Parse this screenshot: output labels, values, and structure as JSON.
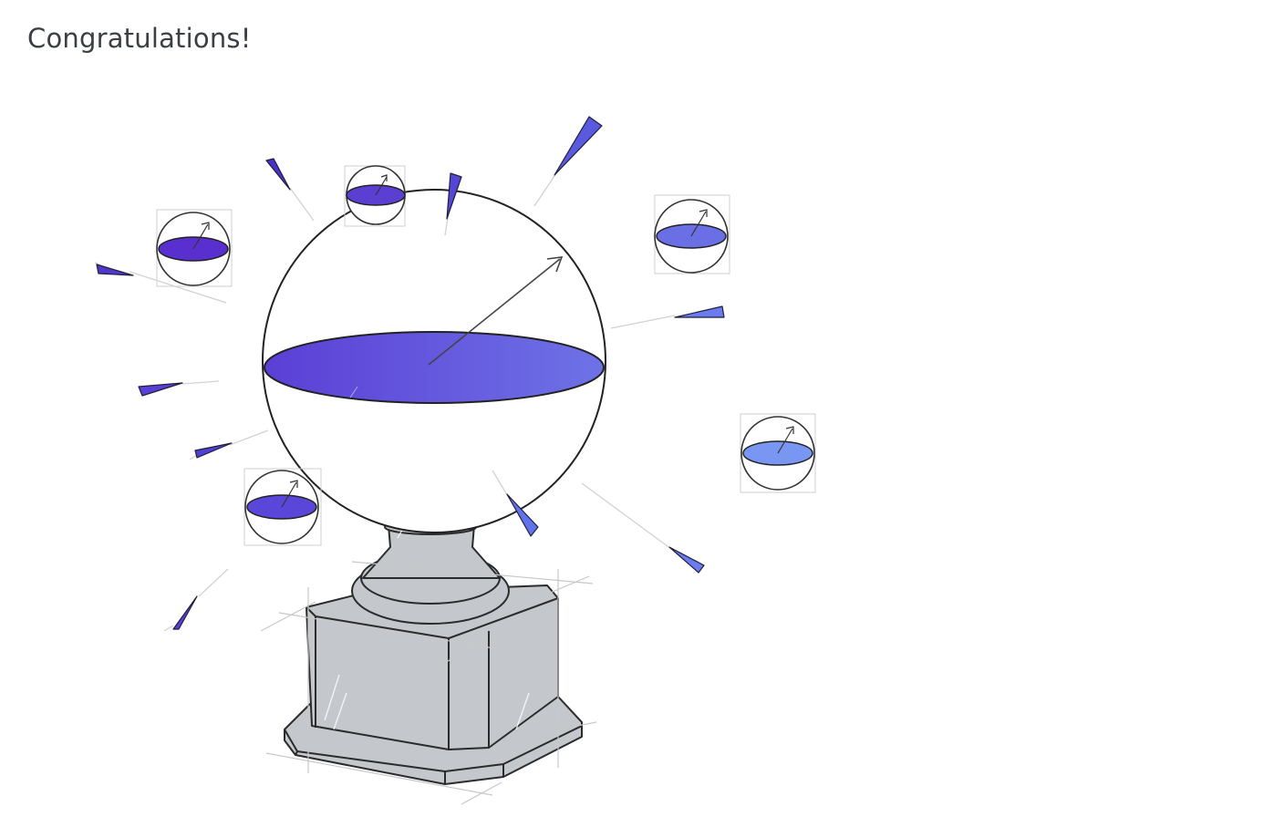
{
  "heading": {
    "text": "Congratulations!"
  },
  "illustration": {
    "icon": "trophy-bloch-sphere-icon",
    "colors": {
      "equator_start": "#5b3fd6",
      "equator_end": "#6e72e6",
      "pedestal": "#c4c8cc",
      "pedestal_edge": "#2b2b2b",
      "confetti_dark": "#4a31c9",
      "confetti_light": "#6a7cf0"
    }
  }
}
